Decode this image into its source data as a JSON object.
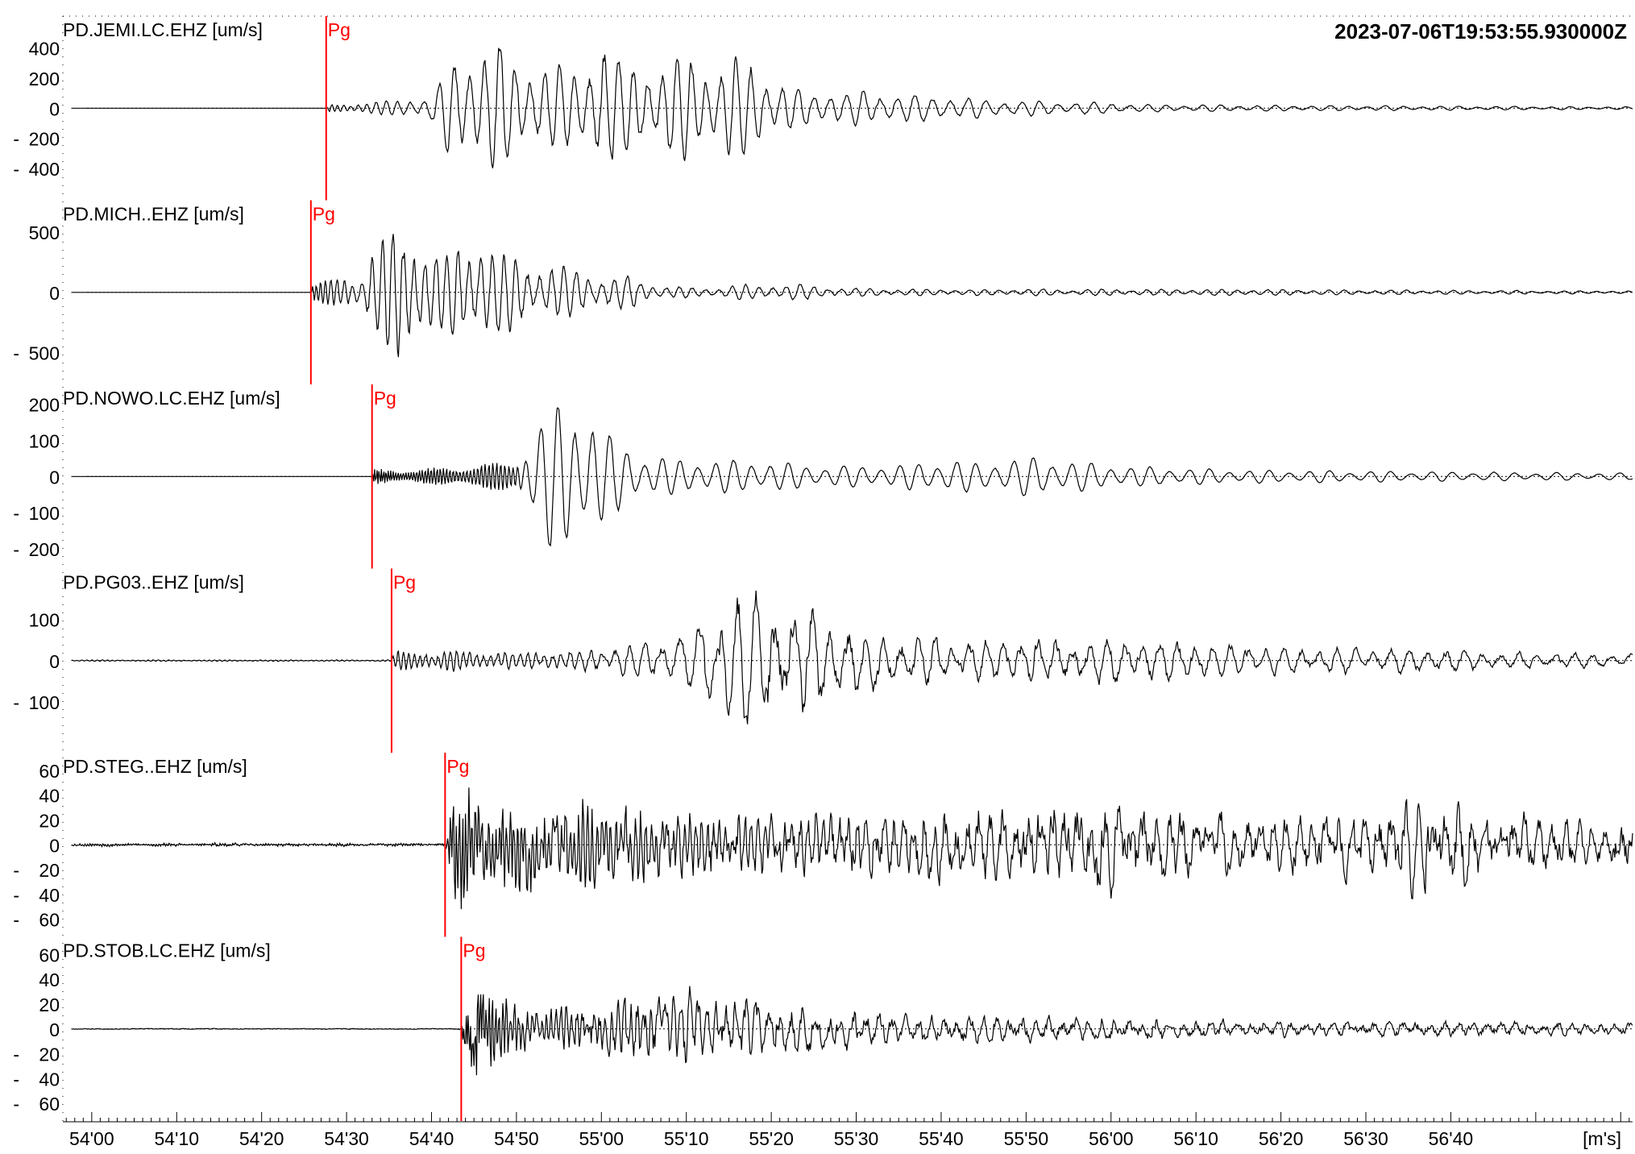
{
  "chart_data": {
    "type": "line",
    "timestamp": "2023-07-06T19:53:55.930000Z",
    "x_unit_label": "[m's]",
    "x_ticks": [
      "54'00",
      "54'10",
      "54'20",
      "54'30",
      "54'40",
      "54'50",
      "55'00",
      "55'10",
      "55'20",
      "55'30",
      "55'40",
      "55'50",
      "56'00",
      "56'10",
      "56'20",
      "56'30",
      "56'40"
    ],
    "x_range_seconds": [
      56.6,
      241.4
    ],
    "x_tick_start_seconds": 60,
    "x_tick_step_seconds": 10,
    "grid": false,
    "pick_color": "#ff0000",
    "trace_color": "#000000",
    "traces": [
      {
        "label": "PD.JEMI.LC.EHZ [um/s]",
        "y_ticks": [
          "400",
          "200",
          "0",
          "200",
          "400"
        ],
        "y_tick_values": [
          400,
          200,
          0,
          -200,
          -400
        ],
        "y_range": [
          -600,
          600
        ],
        "pick": {
          "phase": "Pg",
          "time_s": 87.6
        },
        "envelope": [
          [
            56.6,
            0
          ],
          [
            87.6,
            0
          ],
          [
            88,
            25
          ],
          [
            95,
            55
          ],
          [
            100,
            90
          ],
          [
            102,
            320
          ],
          [
            105,
            460
          ],
          [
            108,
            450
          ],
          [
            112,
            300
          ],
          [
            118,
            300
          ],
          [
            120,
            580
          ],
          [
            122,
            350
          ],
          [
            127,
            300
          ],
          [
            130,
            420
          ],
          [
            133,
            310
          ],
          [
            137,
            400
          ],
          [
            140,
            210
          ],
          [
            144,
            120
          ],
          [
            150,
            130
          ],
          [
            158,
            100
          ],
          [
            163,
            80
          ],
          [
            168,
            60
          ],
          [
            175,
            50
          ],
          [
            185,
            28
          ],
          [
            200,
            22
          ],
          [
            220,
            15
          ],
          [
            241.4,
            10
          ]
        ],
        "period": [
          [
            87,
            0.5
          ],
          [
            100,
            1.8
          ],
          [
            130,
            1.7
          ],
          [
            160,
            2.1
          ],
          [
            241,
            2.2
          ]
        ],
        "noise_level": 0.12,
        "seed": 11
      },
      {
        "label": "PD.MICH..EHZ [um/s]",
        "y_ticks": [
          "500",
          "0",
          "500"
        ],
        "y_tick_values": [
          500,
          0,
          -500
        ],
        "y_range": [
          -750,
          750
        ],
        "pick": {
          "phase": "Pg",
          "time_s": 85.8
        },
        "envelope": [
          [
            56.6,
            0
          ],
          [
            85.8,
            0
          ],
          [
            86,
            90
          ],
          [
            92,
            170
          ],
          [
            93,
            440
          ],
          [
            96,
            620
          ],
          [
            99,
            420
          ],
          [
            102,
            380
          ],
          [
            105,
            520
          ],
          [
            108,
            380
          ],
          [
            112,
            280
          ],
          [
            116,
            230
          ],
          [
            120,
            170
          ],
          [
            124,
            140
          ],
          [
            127,
            60
          ],
          [
            132,
            40
          ],
          [
            138,
            75
          ],
          [
            143,
            80
          ],
          [
            148,
            40
          ],
          [
            160,
            30
          ],
          [
            190,
            30
          ],
          [
            220,
            20
          ],
          [
            241.4,
            12
          ]
        ],
        "period": [
          [
            86,
            0.4
          ],
          [
            92,
            1.2
          ],
          [
            120,
            1.5
          ],
          [
            160,
            1.7
          ],
          [
            241,
            1.9
          ]
        ],
        "noise_level": 0.15,
        "seed": 23
      },
      {
        "label": "PD.NOWO.LC.EHZ [um/s]",
        "y_ticks": [
          "200",
          "100",
          "0",
          "100",
          "200"
        ],
        "y_tick_values": [
          200,
          100,
          0,
          -100,
          -200
        ],
        "y_range": [
          -250,
          250
        ],
        "pick": {
          "phase": "Pg",
          "time_s": 93.0
        },
        "envelope": [
          [
            56.6,
            0
          ],
          [
            93,
            0
          ],
          [
            93.3,
            22
          ],
          [
            100,
            24
          ],
          [
            106,
            38
          ],
          [
            110,
            45
          ],
          [
            112,
            130
          ],
          [
            114,
            210
          ],
          [
            116,
            230
          ],
          [
            119,
            190
          ],
          [
            121,
            120
          ],
          [
            125,
            60
          ],
          [
            130,
            50
          ],
          [
            140,
            45
          ],
          [
            146,
            30
          ],
          [
            155,
            35
          ],
          [
            161,
            50
          ],
          [
            165,
            40
          ],
          [
            170,
            60
          ],
          [
            176,
            45
          ],
          [
            182,
            30
          ],
          [
            195,
            20
          ],
          [
            220,
            14
          ],
          [
            241.4,
            10
          ]
        ],
        "period": [
          [
            93,
            0.25
          ],
          [
            110,
            0.5
          ],
          [
            112,
            2.0
          ],
          [
            150,
            2.2
          ],
          [
            241,
            2.5
          ]
        ],
        "noise_level": 0.05,
        "seed": 37
      },
      {
        "label": "PD.PG03..EHZ [um/s]",
        "y_ticks": [
          "100",
          "0",
          "100"
        ],
        "y_tick_values": [
          100,
          0,
          -100
        ],
        "y_range": [
          -220,
          220
        ],
        "pick": {
          "phase": "Pg",
          "time_s": 95.3
        },
        "envelope": [
          [
            56.6,
            2
          ],
          [
            95.3,
            2
          ],
          [
            95.6,
            30
          ],
          [
            104,
            28
          ],
          [
            110,
            25
          ],
          [
            116,
            28
          ],
          [
            122,
            40
          ],
          [
            130,
            70
          ],
          [
            134,
            170
          ],
          [
            137,
            210
          ],
          [
            140,
            180
          ],
          [
            145,
            140
          ],
          [
            150,
            110
          ],
          [
            156,
            70
          ],
          [
            162,
            55
          ],
          [
            170,
            75
          ],
          [
            180,
            65
          ],
          [
            190,
            55
          ],
          [
            200,
            40
          ],
          [
            215,
            35
          ],
          [
            230,
            25
          ],
          [
            241.4,
            20
          ]
        ],
        "period": [
          [
            95,
            0.6
          ],
          [
            115,
            1.0
          ],
          [
            130,
            2.3
          ],
          [
            160,
            2.0
          ],
          [
            241,
            2.2
          ]
        ],
        "noise_level": 0.25,
        "seed": 41
      },
      {
        "label": "PD.STEG..EHZ [um/s]",
        "y_ticks": [
          "60",
          "40",
          "20",
          "0",
          "20",
          "40",
          "60"
        ],
        "y_tick_values": [
          60,
          40,
          20,
          0,
          -20,
          -40,
          -60
        ],
        "y_range": [
          -73,
          73
        ],
        "pick": {
          "phase": "Pg",
          "time_s": 101.6
        },
        "envelope": [
          [
            56.6,
            1.6
          ],
          [
            101.6,
            1.6
          ],
          [
            102,
            30
          ],
          [
            103,
            62
          ],
          [
            105,
            55
          ],
          [
            110,
            45
          ],
          [
            115,
            40
          ],
          [
            120,
            48
          ],
          [
            124,
            38
          ],
          [
            130,
            35
          ],
          [
            140,
            32
          ],
          [
            150,
            34
          ],
          [
            160,
            38
          ],
          [
            170,
            40
          ],
          [
            175,
            48
          ],
          [
            180,
            46
          ],
          [
            190,
            30
          ],
          [
            200,
            30
          ],
          [
            210,
            30
          ],
          [
            218,
            44
          ],
          [
            224,
            32
          ],
          [
            235,
            25
          ],
          [
            241.4,
            25
          ]
        ],
        "period": [
          [
            100,
            0.15
          ],
          [
            102,
            0.35
          ],
          [
            120,
            0.55
          ],
          [
            140,
            0.8
          ],
          [
            170,
            1.5
          ],
          [
            241,
            1.6
          ]
        ],
        "noise_level": 0.45,
        "seed": 53
      },
      {
        "label": "PD.STOB.LC.EHZ [um/s]",
        "y_ticks": [
          "60",
          "40",
          "20",
          "0",
          "20",
          "40",
          "60"
        ],
        "y_tick_values": [
          60,
          40,
          20,
          0,
          -20,
          -40,
          -60
        ],
        "y_range": [
          -73,
          73
        ],
        "pick": {
          "phase": "Pg",
          "time_s": 103.5
        },
        "envelope": [
          [
            56.6,
            0.8
          ],
          [
            103.5,
            0.8
          ],
          [
            104,
            30
          ],
          [
            105.5,
            58
          ],
          [
            108,
            30
          ],
          [
            112,
            22
          ],
          [
            116,
            22
          ],
          [
            120,
            26
          ],
          [
            124,
            36
          ],
          [
            127,
            40
          ],
          [
            131,
            35
          ],
          [
            136,
            28
          ],
          [
            142,
            25
          ],
          [
            148,
            22
          ],
          [
            155,
            15
          ],
          [
            165,
            14
          ],
          [
            180,
            12
          ],
          [
            200,
            8
          ],
          [
            241.4,
            7
          ]
        ],
        "period": [
          [
            103,
            0.2
          ],
          [
            110,
            0.5
          ],
          [
            125,
            0.8
          ],
          [
            145,
            1.5
          ],
          [
            241,
            1.7
          ]
        ],
        "noise_level": 0.4,
        "seed": 67
      }
    ]
  }
}
